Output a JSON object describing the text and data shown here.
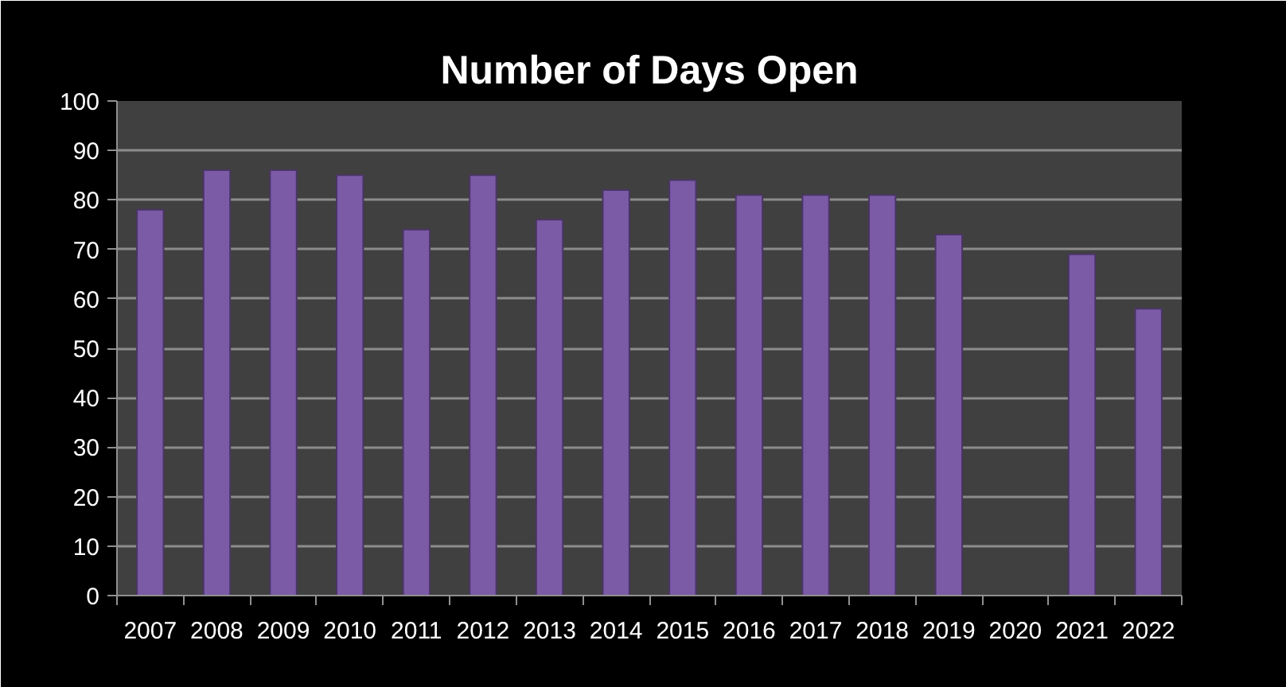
{
  "chart_data": {
    "type": "bar",
    "title": "Number of Days Open",
    "categories": [
      "2007",
      "2008",
      "2009",
      "2010",
      "2011",
      "2012",
      "2013",
      "2014",
      "2015",
      "2016",
      "2017",
      "2018",
      "2019",
      "2020",
      "2021",
      "2022"
    ],
    "values": [
      78,
      86,
      86,
      85,
      74,
      85,
      76,
      82,
      84,
      81,
      81,
      81,
      73,
      null,
      69,
      58
    ],
    "color": "#7b5aa6",
    "ylim": [
      0,
      100
    ],
    "yticks": [
      0,
      10,
      20,
      30,
      40,
      50,
      60,
      70,
      80,
      90,
      100
    ],
    "grid": "y"
  }
}
